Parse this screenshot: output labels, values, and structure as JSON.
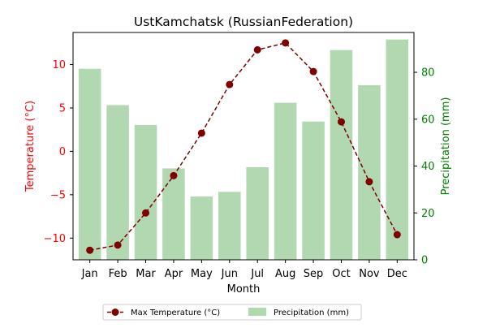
{
  "chart_data": {
    "type": "bar+line",
    "title": "UstKamchatsk (RussianFederation)",
    "xlabel": "Month",
    "ylabel_left": "Temperature (°C)",
    "ylabel_right": "Precipitation (mm)",
    "categories": [
      "Jan",
      "Feb",
      "Mar",
      "Apr",
      "May",
      "Jun",
      "Jul",
      "Aug",
      "Sep",
      "Oct",
      "Nov",
      "Dec"
    ],
    "ylim_left": [
      -12.5,
      13.7
    ],
    "ylim_right": [
      0,
      97
    ],
    "yticks_left": [
      -10,
      -5,
      0,
      5,
      10
    ],
    "yticks_right": [
      0,
      20,
      40,
      60,
      80
    ],
    "series": [
      {
        "name": "Max Temperature (°C)",
        "type": "line",
        "axis": "left",
        "color": "#800000",
        "linestyle": "dashed",
        "marker": "circle",
        "values": [
          -11.4,
          -10.8,
          -7.1,
          -2.8,
          2.1,
          7.7,
          11.7,
          12.5,
          9.2,
          3.4,
          -3.5,
          -9.6
        ]
      },
      {
        "name": "Precipitation (mm)",
        "type": "bar",
        "axis": "right",
        "color": "#b2d8b2",
        "values": [
          81.5,
          66,
          57.5,
          39,
          27,
          29,
          39.5,
          67,
          59,
          89.5,
          74.5,
          94
        ]
      }
    ],
    "left_axis_color": "#ff0000",
    "right_axis_color": "#008000",
    "legend_position": "bottom-center"
  }
}
